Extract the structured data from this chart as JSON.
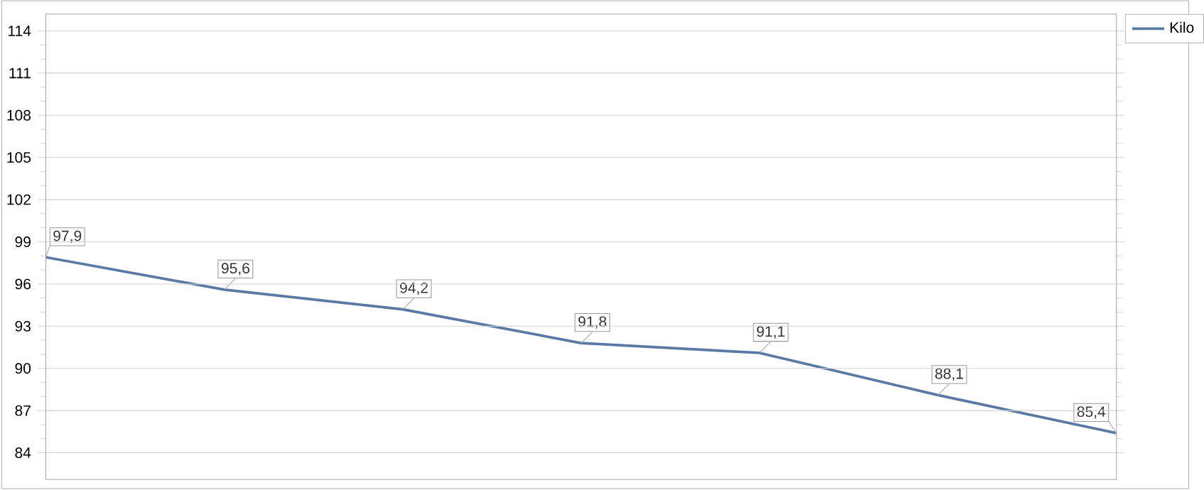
{
  "chart_data": {
    "type": "line",
    "categories": [
      null,
      null,
      null,
      null,
      null,
      null,
      null
    ],
    "ylim": [
      82.1,
      115.2
    ],
    "yticks": [
      84,
      87,
      90,
      93,
      96,
      99,
      102,
      105,
      108,
      111,
      114
    ],
    "tick_labels": "y",
    "grid": "y",
    "legend": "top right",
    "marker": "none",
    "line_style": "solid",
    "series": [
      {
        "name": "Kilo",
        "color": "#5a7aa5",
        "values": [
          97.9,
          95.6,
          94.2,
          91.8,
          91.1,
          88.1,
          85.4
        ],
        "value_labels": [
          "97,9",
          "95,6",
          "94,2",
          "91,8",
          "91,1",
          "88,1",
          "85,4"
        ]
      }
    ]
  }
}
